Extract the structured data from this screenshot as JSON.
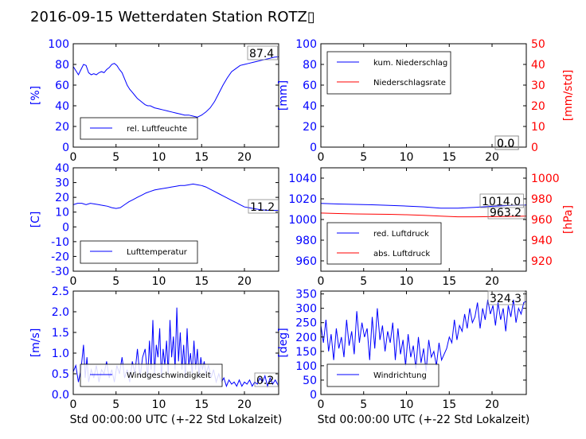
{
  "title": "2016-09-15 Wetterdaten Station ROTZ▯",
  "colors": {
    "primary": "#0000ff",
    "secondary": "#ff0000",
    "axis": "#000000"
  },
  "chart_data": [
    {
      "id": "humidity",
      "type": "line",
      "ylabel": "[%]",
      "xlim": [
        0,
        24
      ],
      "ylim": [
        0,
        100
      ],
      "xticks": [
        0,
        5,
        10,
        15,
        20
      ],
      "yticks": [
        0,
        20,
        40,
        60,
        80,
        100
      ],
      "legend": "bottom-left",
      "grid": false,
      "last_value_label": "87.4",
      "series": [
        {
          "name": "rel. Luftfeuchte",
          "color": "#0000ff",
          "x": [
            0,
            0.3,
            0.6,
            0.9,
            1.2,
            1.5,
            1.8,
            2.1,
            2.4,
            2.7,
            3,
            3.3,
            3.6,
            3.9,
            4.2,
            4.5,
            4.8,
            5.1,
            5.4,
            5.7,
            6,
            6.3,
            6.6,
            6.9,
            7.2,
            7.5,
            7.8,
            8.1,
            8.4,
            8.7,
            9,
            9.5,
            10,
            10.5,
            11,
            11.5,
            12,
            12.5,
            13,
            13.5,
            14,
            14.5,
            15,
            15.5,
            16,
            16.5,
            17,
            17.5,
            18,
            18.5,
            19,
            19.5,
            20,
            20.5,
            21,
            21.5,
            22,
            22.5,
            23,
            23.5,
            24
          ],
          "y": [
            78,
            74,
            70,
            75,
            80,
            79,
            72,
            70,
            71,
            70,
            72,
            73,
            72,
            75,
            77,
            80,
            81,
            79,
            75,
            72,
            66,
            60,
            56,
            53,
            50,
            47,
            45,
            43,
            41,
            40,
            40,
            38,
            37,
            36,
            35,
            34,
            33,
            32,
            31,
            31,
            30,
            29,
            31,
            34,
            38,
            44,
            52,
            60,
            67,
            73,
            76,
            79,
            80,
            81,
            82,
            83,
            84,
            85,
            86,
            87,
            87.4
          ]
        }
      ],
      "data_labels": [
        {
          "series": 0,
          "value": "87.4"
        }
      ]
    },
    {
      "id": "precip",
      "type": "line",
      "ylabel": "[mm]",
      "ylabel_right": "[mm/std]",
      "xlim": [
        0,
        24
      ],
      "ylim": [
        0,
        100
      ],
      "ylim_right": [
        0,
        50
      ],
      "xticks": [
        0,
        5,
        10,
        15,
        20
      ],
      "yticks": [
        0,
        20,
        40,
        60,
        80,
        100
      ],
      "yticks_right": [
        0,
        10,
        20,
        30,
        40,
        50
      ],
      "legend": "top-left",
      "grid": false,
      "series": [
        {
          "name": "kum. Niederschlag",
          "color": "#0000ff",
          "x": [
            0,
            24
          ],
          "y": [
            0,
            0
          ]
        },
        {
          "name": "Niederschlagsrate",
          "color": "#ff0000",
          "x": [
            0,
            24
          ],
          "y": [
            0,
            0
          ]
        }
      ],
      "data_labels": [
        {
          "series": 0,
          "value": "0.0"
        },
        {
          "series": 1,
          "value": "0.0"
        }
      ]
    },
    {
      "id": "temperature",
      "type": "line",
      "ylabel": "[C]",
      "xlim": [
        0,
        24
      ],
      "ylim": [
        -30,
        40
      ],
      "xticks": [
        0,
        5,
        10,
        15,
        20
      ],
      "yticks": [
        -30,
        -20,
        -10,
        0,
        10,
        20,
        30,
        40
      ],
      "legend": "bottom-left",
      "grid": false,
      "series": [
        {
          "name": "Lufttemperatur",
          "color": "#0000ff",
          "x": [
            0,
            0.5,
            1,
            1.5,
            2,
            2.5,
            3,
            3.5,
            4,
            4.5,
            5,
            5.5,
            6,
            6.5,
            7,
            7.5,
            8,
            8.5,
            9,
            9.5,
            10,
            10.5,
            11,
            11.5,
            12,
            12.5,
            13,
            13.5,
            14,
            14.5,
            15,
            15.5,
            16,
            16.5,
            17,
            17.5,
            18,
            18.5,
            19,
            19.5,
            20,
            20.5,
            21,
            21.5,
            22,
            22.5,
            23,
            23.5,
            24
          ],
          "y": [
            15,
            16,
            16,
            15,
            16,
            15.5,
            15,
            14.5,
            14,
            13,
            12.5,
            13,
            15,
            17,
            18.5,
            20,
            21.5,
            23,
            24,
            25,
            25.5,
            26,
            26.5,
            27,
            27.5,
            28,
            28,
            28.5,
            29,
            28.5,
            28,
            27,
            25.5,
            24,
            22.5,
            21,
            19.5,
            18,
            16.5,
            15,
            13.5,
            13,
            12.5,
            12,
            11.5,
            11.3,
            11.2,
            11.2,
            11.2
          ]
        }
      ],
      "data_labels": [
        {
          "series": 0,
          "value": "11.2"
        }
      ]
    },
    {
      "id": "pressure",
      "type": "line",
      "ylabel_right": "[hPa]",
      "xlim": [
        0,
        24
      ],
      "ylim": [
        950,
        1050
      ],
      "ylim_right": [
        910,
        1010
      ],
      "xticks": [
        0,
        5,
        10,
        15,
        20
      ],
      "yticks": [
        960,
        980,
        1000,
        1020,
        1040
      ],
      "yticks_right": [
        920,
        940,
        960,
        980,
        1000
      ],
      "legend": "bottom-left",
      "grid": false,
      "series": [
        {
          "name": "red. Luftdruck",
          "color": "#0000ff",
          "axis": "left",
          "x": [
            0,
            2,
            4,
            6,
            8,
            10,
            12,
            14,
            16,
            18,
            20,
            22,
            24
          ],
          "y": [
            1015.5,
            1015,
            1014.6,
            1014.2,
            1013.7,
            1013,
            1012.2,
            1011,
            1011,
            1011.8,
            1012.8,
            1013.6,
            1014.0
          ]
        },
        {
          "name": "abs. Luftdruck",
          "color": "#ff0000",
          "axis": "right",
          "x": [
            0,
            2,
            4,
            6,
            8,
            10,
            12,
            14,
            16,
            18,
            20,
            22,
            24
          ],
          "y": [
            966.2,
            965.8,
            965.4,
            965.2,
            965,
            964.6,
            964,
            963.2,
            962.6,
            962.6,
            962.8,
            963.0,
            963.2
          ]
        }
      ],
      "data_labels": [
        {
          "series": 0,
          "value": "1014.0"
        },
        {
          "series": 1,
          "value": "963.2"
        }
      ]
    },
    {
      "id": "wind",
      "type": "line",
      "ylabel": "[m/s]",
      "xlabel": "Std 00:00:00 UTC (+-22 Std Lokalzeit)",
      "xlim": [
        0,
        24
      ],
      "ylim": [
        0,
        2.5
      ],
      "xticks": [
        0,
        5,
        10,
        15,
        20
      ],
      "yticks": [
        0.0,
        0.5,
        1.0,
        1.5,
        2.0,
        2.5
      ],
      "legend": "bottom-left",
      "grid": false,
      "series": [
        {
          "name": "Windgeschwindigkeit",
          "color": "#0000ff",
          "x": [
            0,
            0.3,
            0.6,
            0.9,
            1.2,
            1.4,
            1.6,
            1.8,
            2.1,
            2.4,
            2.7,
            3,
            3.3,
            3.6,
            3.9,
            4.2,
            4.5,
            4.8,
            5.1,
            5.4,
            5.7,
            6,
            6.3,
            6.6,
            6.9,
            7.2,
            7.5,
            7.8,
            8.1,
            8.4,
            8.7,
            8.9,
            9.1,
            9.3,
            9.5,
            9.7,
            9.9,
            10.1,
            10.3,
            10.5,
            10.7,
            10.9,
            11.1,
            11.3,
            11.5,
            11.7,
            11.9,
            12.1,
            12.3,
            12.5,
            12.7,
            12.9,
            13.1,
            13.3,
            13.5,
            13.7,
            13.9,
            14.1,
            14.3,
            14.5,
            14.7,
            14.9,
            15.1,
            15.3,
            15.5,
            15.8,
            16.1,
            16.4,
            16.7,
            17,
            17.3,
            17.6,
            17.9,
            18.2,
            18.5,
            18.8,
            19.1,
            19.4,
            19.7,
            20,
            20.3,
            20.6,
            20.9,
            21.2,
            21.5,
            21.8,
            22.1,
            22.4,
            22.7,
            23,
            23.3,
            23.6,
            24
          ],
          "y": [
            0.55,
            0.7,
            0.3,
            0.6,
            1.2,
            0.4,
            0.9,
            0.3,
            0.6,
            0.4,
            0.7,
            0.3,
            0.6,
            0.5,
            0.8,
            0.4,
            0.6,
            0.3,
            0.7,
            0.5,
            0.9,
            0.4,
            0.6,
            0.3,
            0.8,
            0.5,
            1.1,
            0.4,
            0.9,
            1.1,
            0.4,
            1.3,
            0.6,
            1.8,
            0.5,
            1.2,
            0.9,
            1.6,
            0.4,
            1.1,
            0.7,
            1.3,
            0.5,
            1.8,
            0.9,
            1.4,
            0.6,
            2.1,
            0.8,
            1.5,
            0.6,
            1.2,
            0.4,
            1.6,
            0.7,
            1.0,
            0.5,
            1.3,
            0.6,
            1.1,
            0.4,
            0.9,
            0.6,
            0.8,
            0.5,
            0.7,
            0.4,
            0.6,
            0.3,
            0.5,
            0.3,
            0.4,
            0.2,
            0.35,
            0.25,
            0.3,
            0.2,
            0.35,
            0.2,
            0.3,
            0.25,
            0.35,
            0.2,
            0.3,
            0.25,
            0.4,
            0.3,
            0.45,
            0.2,
            0.4,
            0.25,
            0.35,
            0.2
          ]
        }
      ],
      "data_labels": [
        {
          "series": 0,
          "value": "0.2"
        }
      ]
    },
    {
      "id": "winddir",
      "type": "line",
      "ylabel": "[deg]",
      "xlabel": "Std 00:00:00 UTC (+-22 Std Lokalzeit)",
      "xlim": [
        0,
        24
      ],
      "ylim": [
        0,
        360
      ],
      "xticks": [
        0,
        5,
        10,
        15,
        20
      ],
      "yticks": [
        0,
        50,
        100,
        150,
        200,
        250,
        300,
        350
      ],
      "legend": "bottom-left",
      "grid": false,
      "series": [
        {
          "name": "Windrichtung",
          "color": "#0000ff",
          "x": [
            0,
            0.3,
            0.6,
            0.9,
            1.2,
            1.5,
            1.8,
            2.1,
            2.4,
            2.7,
            3,
            3.3,
            3.6,
            3.9,
            4.2,
            4.5,
            4.8,
            5.1,
            5.4,
            5.7,
            6,
            6.3,
            6.6,
            6.9,
            7.2,
            7.5,
            7.8,
            8.1,
            8.4,
            8.7,
            9,
            9.3,
            9.6,
            9.9,
            10.2,
            10.5,
            10.8,
            11.1,
            11.4,
            11.7,
            12,
            12.3,
            12.6,
            12.9,
            13.2,
            13.5,
            13.8,
            14.1,
            14.4,
            14.7,
            15,
            15.3,
            15.6,
            15.9,
            16.2,
            16.5,
            16.8,
            17.1,
            17.4,
            17.7,
            18,
            18.3,
            18.6,
            18.9,
            19.2,
            19.5,
            19.8,
            20.1,
            20.4,
            20.7,
            21,
            21.3,
            21.6,
            21.9,
            22.2,
            22.5,
            22.8,
            23.1,
            23.4,
            23.7,
            24
          ],
          "y": [
            240,
            180,
            260,
            150,
            210,
            120,
            230,
            160,
            200,
            130,
            260,
            170,
            220,
            140,
            290,
            180,
            250,
            200,
            230,
            120,
            270,
            160,
            300,
            190,
            240,
            150,
            220,
            180,
            250,
            120,
            230,
            140,
            190,
            100,
            210,
            130,
            170,
            90,
            200,
            110,
            160,
            80,
            190,
            130,
            150,
            100,
            180,
            120,
            140,
            160,
            200,
            180,
            260,
            190,
            240,
            220,
            280,
            230,
            300,
            250,
            270,
            320,
            230,
            300,
            260,
            330,
            280,
            310,
            240,
            320,
            260,
            300,
            220,
            310,
            270,
            330,
            250,
            300,
            280,
            320,
            324.3
          ]
        }
      ],
      "data_labels": [
        {
          "series": 0,
          "value": "324.3"
        }
      ]
    }
  ]
}
